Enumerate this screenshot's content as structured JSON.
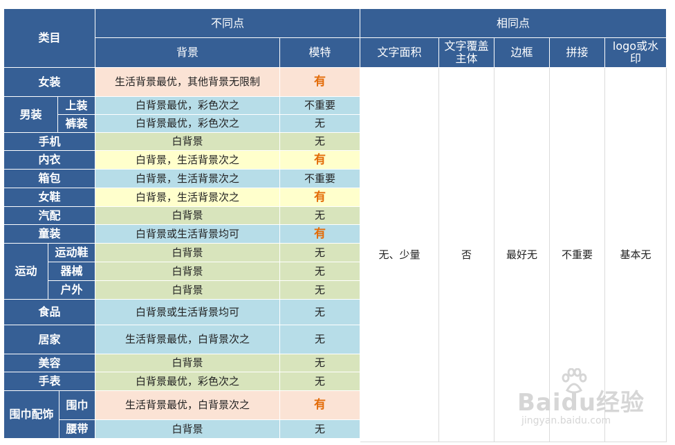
{
  "header": {
    "category": "类目",
    "differences": "不同点",
    "similarities": "相同点",
    "background": "背景",
    "model": "模特",
    "text_area": "文字面积",
    "text_cover": "文字覆盖主体",
    "border": "边框",
    "splice": "拼接",
    "logo": "logo或水印"
  },
  "rows": [
    {
      "cat": "女装",
      "sub": "",
      "bg": "生活背景最优，其他背景无限制",
      "model": "有",
      "color": "pink",
      "highlight": true
    },
    {
      "cat": "男装",
      "sub": "上装",
      "bg": "白背景最优，彩色次之",
      "model": "不重要",
      "color": "blue",
      "highlight": false
    },
    {
      "cat": "",
      "sub": "裤装",
      "bg": "白背景最优，彩色次之",
      "model": "无",
      "color": "blue",
      "highlight": false
    },
    {
      "cat": "手机",
      "sub": "",
      "bg": "白背景",
      "model": "无",
      "color": "green",
      "highlight": false
    },
    {
      "cat": "内衣",
      "sub": "",
      "bg": "白背景，生活背景次之",
      "model": "有",
      "color": "yellow",
      "highlight": true
    },
    {
      "cat": "箱包",
      "sub": "",
      "bg": "白背景，生活背景次之",
      "model": "不重要",
      "color": "blue",
      "highlight": false
    },
    {
      "cat": "女鞋",
      "sub": "",
      "bg": "白背景，生活背景次之",
      "model": "有",
      "color": "yellow",
      "highlight": true
    },
    {
      "cat": "汽配",
      "sub": "",
      "bg": "白背景",
      "model": "无",
      "color": "green",
      "highlight": false
    },
    {
      "cat": "童装",
      "sub": "",
      "bg": "白背景或生活背景均可",
      "model": "有",
      "color": "blue",
      "highlight": true
    },
    {
      "cat": "运动",
      "sub": "运动鞋",
      "bg": "白背景",
      "model": "无",
      "color": "green",
      "highlight": false
    },
    {
      "cat": "",
      "sub": "器械",
      "bg": "白背景",
      "model": "无",
      "color": "green",
      "highlight": false
    },
    {
      "cat": "",
      "sub": "户外",
      "bg": "白背景",
      "model": "无",
      "color": "green",
      "highlight": false
    },
    {
      "cat": "食品",
      "sub": "",
      "bg": "白背景或生活背景均可",
      "model": "无",
      "color": "blue",
      "highlight": false
    },
    {
      "cat": "居家",
      "sub": "",
      "bg": "生活背景最优，白背景次之",
      "model": "无",
      "color": "blue",
      "highlight": false
    },
    {
      "cat": "美容",
      "sub": "",
      "bg": "白背景",
      "model": "无",
      "color": "green",
      "highlight": false
    },
    {
      "cat": "手表",
      "sub": "",
      "bg": "白背景最优，彩色次之",
      "model": "无",
      "color": "green",
      "highlight": false
    },
    {
      "cat": "围巾配饰",
      "sub": "围巾",
      "bg": "生活背景最优，白背景次之",
      "model": "有",
      "color": "pink",
      "highlight": true
    },
    {
      "cat": "",
      "sub": "腰带",
      "bg": "白背景",
      "model": "无",
      "color": "blue",
      "highlight": false
    }
  ],
  "common": {
    "text_area": "无、少量",
    "text_cover": "否",
    "border": "最好无",
    "splice": "不重要",
    "logo": "基本无"
  },
  "colors": {
    "header": "#365f95",
    "pink": "#fbe3d5",
    "blue": "#b7dde8",
    "green": "#d8e4bc",
    "yellow": "#ffffcc",
    "highlight_text": "#e36c09"
  },
  "watermark": {
    "brand": "Baidu经验",
    "url": "jingyan.baidu.com"
  }
}
